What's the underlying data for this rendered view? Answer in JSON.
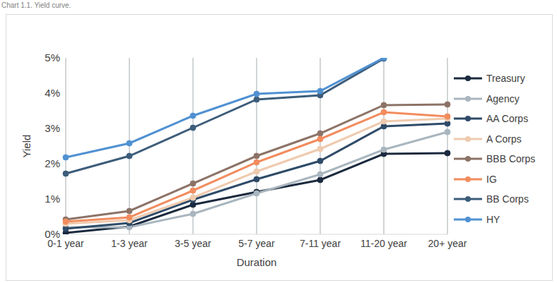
{
  "chart_data": {
    "type": "line",
    "title": "Chart 1.1. Yield curve.",
    "x_label": "Duration",
    "y_label": "Yield",
    "categories": [
      "0-1 year",
      "1-3 year",
      "3-5 year",
      "5-7 year",
      "7-11 year",
      "11-20 year",
      "20+ year"
    ],
    "series": [
      {
        "name": "Treasury",
        "color": "#1b2a3e",
        "values": [
          0.04,
          0.22,
          0.84,
          1.2,
          1.54,
          2.28,
          2.3
        ]
      },
      {
        "name": "Agency",
        "color": "#a9b6bf",
        "values": [
          0.2,
          0.2,
          0.58,
          1.16,
          1.7,
          2.4,
          2.9
        ]
      },
      {
        "name": "AA Corps",
        "color": "#2f4b68",
        "values": [
          0.16,
          0.32,
          0.98,
          1.56,
          2.08,
          3.06,
          3.14
        ]
      },
      {
        "name": "A Corps",
        "color": "#efcaae",
        "values": [
          0.3,
          0.4,
          1.04,
          1.78,
          2.42,
          3.2,
          3.28
        ]
      },
      {
        "name": "BBB Corps",
        "color": "#8c7367",
        "values": [
          0.42,
          0.66,
          1.44,
          2.22,
          2.86,
          3.66,
          3.68
        ]
      },
      {
        "name": "IG",
        "color": "#f28c5e",
        "values": [
          0.36,
          0.48,
          1.24,
          2.04,
          2.7,
          3.46,
          3.34
        ]
      },
      {
        "name": "BB Corps",
        "color": "#3d5d7a",
        "values": [
          1.72,
          2.22,
          3.02,
          3.82,
          3.94,
          4.98,
          null
        ]
      },
      {
        "name": "HY",
        "color": "#5091d2",
        "values": [
          2.18,
          2.58,
          3.36,
          3.98,
          4.06,
          5.0,
          null
        ]
      }
    ],
    "ylim": [
      0,
      5
    ],
    "yticks": [
      {
        "value": 0,
        "label": "0%"
      },
      {
        "value": 1,
        "label": "1%"
      },
      {
        "value": 2,
        "label": "2%"
      },
      {
        "value": 3,
        "label": "3%"
      },
      {
        "value": 4,
        "label": "4%"
      },
      {
        "value": 5,
        "label": "5%"
      }
    ],
    "grid": true,
    "legend": "right",
    "marker": "circle"
  }
}
